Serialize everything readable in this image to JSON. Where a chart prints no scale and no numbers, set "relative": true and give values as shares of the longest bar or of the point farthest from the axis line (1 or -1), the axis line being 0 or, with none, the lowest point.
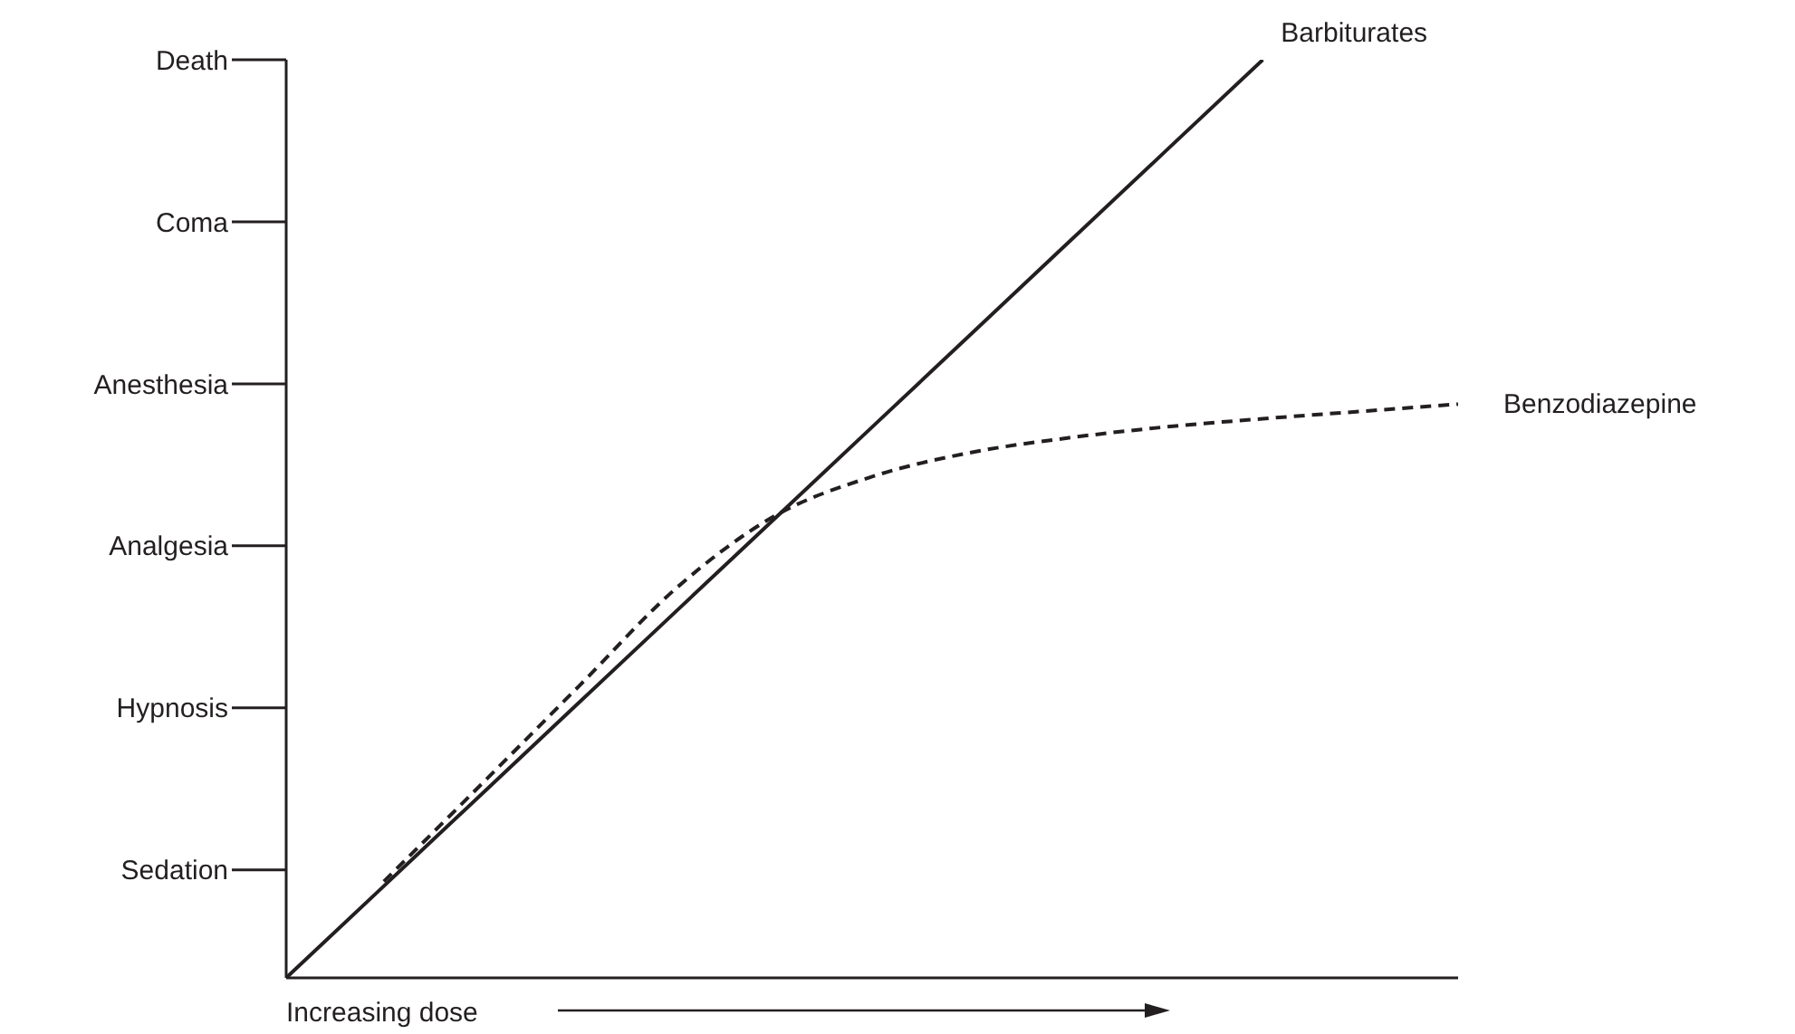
{
  "chart_data": {
    "type": "line",
    "xlabel": "Increasing dose",
    "relative": true,
    "categories": [
      null,
      null,
      null,
      null,
      null,
      null,
      null,
      null,
      null,
      null,
      null,
      null,
      null
    ],
    "series": [
      {
        "name": "Barbiturates",
        "color": "#231f20",
        "line_style": "solid",
        "values": [
          0,
          0.1,
          0.2,
          0.3,
          0.4,
          0.5,
          0.6,
          0.7,
          0.8,
          0.9,
          1,
          null,
          null
        ]
      },
      {
        "name": "Benzodiazepine",
        "color": "#231f20",
        "line_style": "dashed",
        "values": [
          null,
          0.105,
          0.211,
          0.318,
          0.425,
          0.503,
          0.546,
          0.572,
          0.588,
          0.6,
          0.609,
          0.617,
          0.625
        ]
      }
    ],
    "annotations": [
      "Sedation",
      "Hypnosis",
      "Analgesia",
      "Anesthesia",
      "Coma",
      "Death"
    ],
    "marker": "none"
  }
}
